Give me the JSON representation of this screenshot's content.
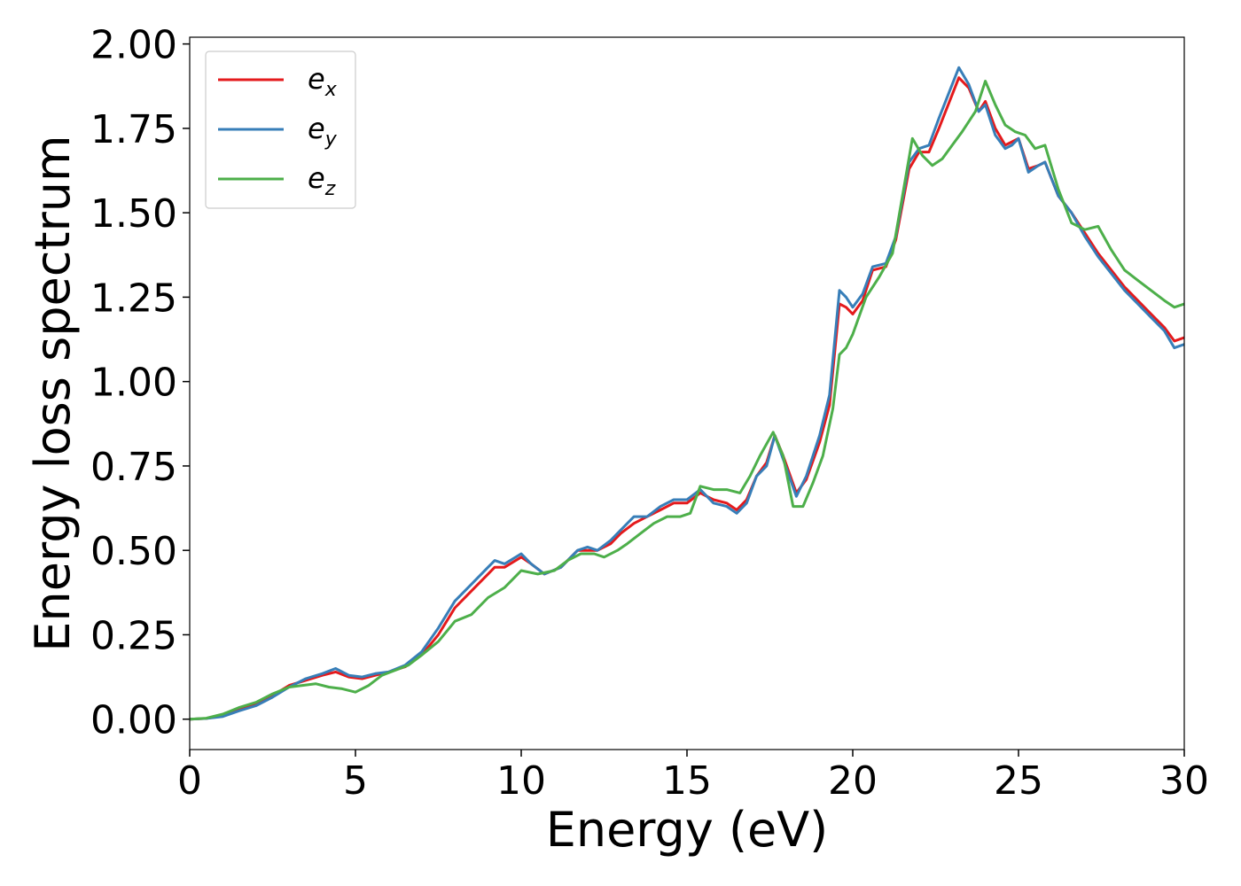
{
  "chart_data": {
    "type": "line",
    "title": "",
    "xlabel": "Energy (eV)",
    "ylabel": "Energy loss spectrum",
    "xlim": [
      0,
      30
    ],
    "ylim": [
      -0.09,
      2.02
    ],
    "xticks": [
      0,
      5,
      10,
      15,
      20,
      25,
      30
    ],
    "xtick_labels": [
      "0",
      "5",
      "10",
      "15",
      "20",
      "25",
      "30"
    ],
    "yticks": [
      0.0,
      0.25,
      0.5,
      0.75,
      1.0,
      1.25,
      1.5,
      1.75,
      2.0
    ],
    "ytick_labels": [
      "0.00",
      "0.25",
      "0.50",
      "0.75",
      "1.00",
      "1.25",
      "1.50",
      "1.75",
      "2.00"
    ],
    "grid": false,
    "legend_position": "top-left",
    "series": [
      {
        "name": "e_x",
        "label_base": "e",
        "label_sub": "x",
        "color": "#e41a1c",
        "points": [
          [
            0,
            0
          ],
          [
            0.5,
            0.002
          ],
          [
            1,
            0.01
          ],
          [
            1.5,
            0.03
          ],
          [
            2,
            0.045
          ],
          [
            2.5,
            0.07
          ],
          [
            3,
            0.1
          ],
          [
            3.5,
            0.115
          ],
          [
            4,
            0.13
          ],
          [
            4.4,
            0.14
          ],
          [
            4.8,
            0.125
          ],
          [
            5.2,
            0.12
          ],
          [
            5.6,
            0.13
          ],
          [
            6,
            0.14
          ],
          [
            6.5,
            0.155
          ],
          [
            7,
            0.19
          ],
          [
            7.5,
            0.25
          ],
          [
            8,
            0.33
          ],
          [
            8.5,
            0.38
          ],
          [
            9,
            0.43
          ],
          [
            9.2,
            0.45
          ],
          [
            9.5,
            0.45
          ],
          [
            10,
            0.48
          ],
          [
            10.3,
            0.46
          ],
          [
            10.7,
            0.43
          ],
          [
            11.2,
            0.45
          ],
          [
            11.7,
            0.5
          ],
          [
            12,
            0.5
          ],
          [
            12.3,
            0.5
          ],
          [
            12.7,
            0.52
          ],
          [
            13,
            0.55
          ],
          [
            13.4,
            0.58
          ],
          [
            13.8,
            0.6
          ],
          [
            14.2,
            0.62
          ],
          [
            14.6,
            0.64
          ],
          [
            15,
            0.64
          ],
          [
            15.4,
            0.67
          ],
          [
            15.8,
            0.65
          ],
          [
            16.2,
            0.64
          ],
          [
            16.5,
            0.62
          ],
          [
            16.8,
            0.65
          ],
          [
            17.1,
            0.72
          ],
          [
            17.4,
            0.76
          ],
          [
            17.65,
            0.84
          ],
          [
            17.9,
            0.78
          ],
          [
            18.3,
            0.67
          ],
          [
            18.6,
            0.71
          ],
          [
            19,
            0.82
          ],
          [
            19.3,
            0.93
          ],
          [
            19.6,
            1.23
          ],
          [
            19.8,
            1.22
          ],
          [
            20,
            1.2
          ],
          [
            20.3,
            1.24
          ],
          [
            20.6,
            1.33
          ],
          [
            21,
            1.34
          ],
          [
            21.3,
            1.42
          ],
          [
            21.7,
            1.63
          ],
          [
            22,
            1.68
          ],
          [
            22.3,
            1.68
          ],
          [
            22.6,
            1.75
          ],
          [
            23,
            1.85
          ],
          [
            23.2,
            1.9
          ],
          [
            23.5,
            1.87
          ],
          [
            23.8,
            1.8
          ],
          [
            24,
            1.83
          ],
          [
            24.3,
            1.75
          ],
          [
            24.6,
            1.7
          ],
          [
            24.8,
            1.71
          ],
          [
            25,
            1.72
          ],
          [
            25.3,
            1.63
          ],
          [
            25.6,
            1.64
          ],
          [
            25.8,
            1.65
          ],
          [
            26.2,
            1.55
          ],
          [
            26.6,
            1.5
          ],
          [
            27,
            1.44
          ],
          [
            27.4,
            1.38
          ],
          [
            27.8,
            1.33
          ],
          [
            28.2,
            1.28
          ],
          [
            28.6,
            1.24
          ],
          [
            29,
            1.2
          ],
          [
            29.4,
            1.16
          ],
          [
            29.7,
            1.12
          ],
          [
            30,
            1.13
          ]
        ]
      },
      {
        "name": "e_y",
        "label_base": "e",
        "label_sub": "y",
        "color": "#377eb8",
        "points": [
          [
            0,
            0
          ],
          [
            0.5,
            0.002
          ],
          [
            1,
            0.008
          ],
          [
            1.5,
            0.025
          ],
          [
            2,
            0.04
          ],
          [
            2.5,
            0.065
          ],
          [
            3,
            0.095
          ],
          [
            3.5,
            0.12
          ],
          [
            4,
            0.135
          ],
          [
            4.4,
            0.15
          ],
          [
            4.8,
            0.13
          ],
          [
            5.2,
            0.125
          ],
          [
            5.6,
            0.135
          ],
          [
            6,
            0.14
          ],
          [
            6.5,
            0.16
          ],
          [
            7,
            0.2
          ],
          [
            7.5,
            0.27
          ],
          [
            8,
            0.35
          ],
          [
            8.5,
            0.4
          ],
          [
            9,
            0.45
          ],
          [
            9.2,
            0.47
          ],
          [
            9.5,
            0.46
          ],
          [
            10,
            0.49
          ],
          [
            10.3,
            0.46
          ],
          [
            10.7,
            0.43
          ],
          [
            11.2,
            0.45
          ],
          [
            11.7,
            0.5
          ],
          [
            12,
            0.51
          ],
          [
            12.3,
            0.5
          ],
          [
            12.7,
            0.53
          ],
          [
            13,
            0.56
          ],
          [
            13.4,
            0.6
          ],
          [
            13.8,
            0.6
          ],
          [
            14.2,
            0.63
          ],
          [
            14.6,
            0.65
          ],
          [
            15,
            0.65
          ],
          [
            15.4,
            0.68
          ],
          [
            15.8,
            0.64
          ],
          [
            16.2,
            0.63
          ],
          [
            16.5,
            0.61
          ],
          [
            16.8,
            0.64
          ],
          [
            17.1,
            0.72
          ],
          [
            17.4,
            0.75
          ],
          [
            17.65,
            0.84
          ],
          [
            17.9,
            0.77
          ],
          [
            18.3,
            0.66
          ],
          [
            18.6,
            0.72
          ],
          [
            19,
            0.84
          ],
          [
            19.3,
            0.96
          ],
          [
            19.6,
            1.27
          ],
          [
            19.8,
            1.25
          ],
          [
            20,
            1.22
          ],
          [
            20.3,
            1.26
          ],
          [
            20.6,
            1.34
          ],
          [
            21,
            1.35
          ],
          [
            21.3,
            1.43
          ],
          [
            21.7,
            1.65
          ],
          [
            22,
            1.69
          ],
          [
            22.3,
            1.7
          ],
          [
            22.6,
            1.78
          ],
          [
            23,
            1.88
          ],
          [
            23.2,
            1.93
          ],
          [
            23.5,
            1.88
          ],
          [
            23.8,
            1.8
          ],
          [
            24,
            1.82
          ],
          [
            24.3,
            1.73
          ],
          [
            24.6,
            1.69
          ],
          [
            24.8,
            1.7
          ],
          [
            25,
            1.72
          ],
          [
            25.3,
            1.62
          ],
          [
            25.6,
            1.64
          ],
          [
            25.8,
            1.65
          ],
          [
            26.2,
            1.55
          ],
          [
            26.6,
            1.5
          ],
          [
            27,
            1.43
          ],
          [
            27.4,
            1.37
          ],
          [
            27.8,
            1.32
          ],
          [
            28.2,
            1.27
          ],
          [
            28.6,
            1.23
          ],
          [
            29,
            1.19
          ],
          [
            29.4,
            1.15
          ],
          [
            29.7,
            1.1
          ],
          [
            30,
            1.11
          ]
        ]
      },
      {
        "name": "e_z",
        "label_base": "e",
        "label_sub": "z",
        "color": "#4daf4a",
        "points": [
          [
            0,
            0
          ],
          [
            0.5,
            0.003
          ],
          [
            1,
            0.015
          ],
          [
            1.5,
            0.035
          ],
          [
            2,
            0.05
          ],
          [
            2.5,
            0.075
          ],
          [
            3,
            0.095
          ],
          [
            3.4,
            0.1
          ],
          [
            3.8,
            0.105
          ],
          [
            4.2,
            0.095
          ],
          [
            4.6,
            0.09
          ],
          [
            5,
            0.08
          ],
          [
            5.4,
            0.1
          ],
          [
            5.8,
            0.13
          ],
          [
            6.2,
            0.145
          ],
          [
            6.6,
            0.16
          ],
          [
            7,
            0.19
          ],
          [
            7.5,
            0.23
          ],
          [
            8,
            0.29
          ],
          [
            8.5,
            0.31
          ],
          [
            9,
            0.36
          ],
          [
            9.5,
            0.39
          ],
          [
            9.8,
            0.42
          ],
          [
            10,
            0.44
          ],
          [
            10.5,
            0.43
          ],
          [
            11,
            0.44
          ],
          [
            11.4,
            0.47
          ],
          [
            11.8,
            0.49
          ],
          [
            12.2,
            0.49
          ],
          [
            12.5,
            0.48
          ],
          [
            12.9,
            0.5
          ],
          [
            13.2,
            0.52
          ],
          [
            13.6,
            0.55
          ],
          [
            14,
            0.58
          ],
          [
            14.4,
            0.6
          ],
          [
            14.8,
            0.6
          ],
          [
            15.1,
            0.61
          ],
          [
            15.4,
            0.69
          ],
          [
            15.8,
            0.68
          ],
          [
            16.2,
            0.68
          ],
          [
            16.6,
            0.67
          ],
          [
            16.9,
            0.72
          ],
          [
            17.2,
            0.78
          ],
          [
            17.6,
            0.85
          ],
          [
            17.9,
            0.78
          ],
          [
            18.2,
            0.63
          ],
          [
            18.5,
            0.63
          ],
          [
            18.8,
            0.7
          ],
          [
            19.1,
            0.78
          ],
          [
            19.4,
            0.92
          ],
          [
            19.6,
            1.08
          ],
          [
            19.8,
            1.1
          ],
          [
            20,
            1.14
          ],
          [
            20.4,
            1.25
          ],
          [
            20.8,
            1.31
          ],
          [
            21.2,
            1.38
          ],
          [
            21.5,
            1.55
          ],
          [
            21.8,
            1.72
          ],
          [
            22.1,
            1.67
          ],
          [
            22.4,
            1.64
          ],
          [
            22.7,
            1.66
          ],
          [
            23,
            1.7
          ],
          [
            23.3,
            1.74
          ],
          [
            23.7,
            1.8
          ],
          [
            24,
            1.89
          ],
          [
            24.3,
            1.82
          ],
          [
            24.6,
            1.76
          ],
          [
            24.9,
            1.74
          ],
          [
            25.2,
            1.73
          ],
          [
            25.5,
            1.69
          ],
          [
            25.8,
            1.7
          ],
          [
            26.2,
            1.57
          ],
          [
            26.6,
            1.47
          ],
          [
            27,
            1.45
          ],
          [
            27.4,
            1.46
          ],
          [
            27.8,
            1.39
          ],
          [
            28.2,
            1.33
          ],
          [
            28.6,
            1.3
          ],
          [
            29,
            1.27
          ],
          [
            29.4,
            1.24
          ],
          [
            29.7,
            1.22
          ],
          [
            30,
            1.23
          ]
        ]
      }
    ]
  }
}
